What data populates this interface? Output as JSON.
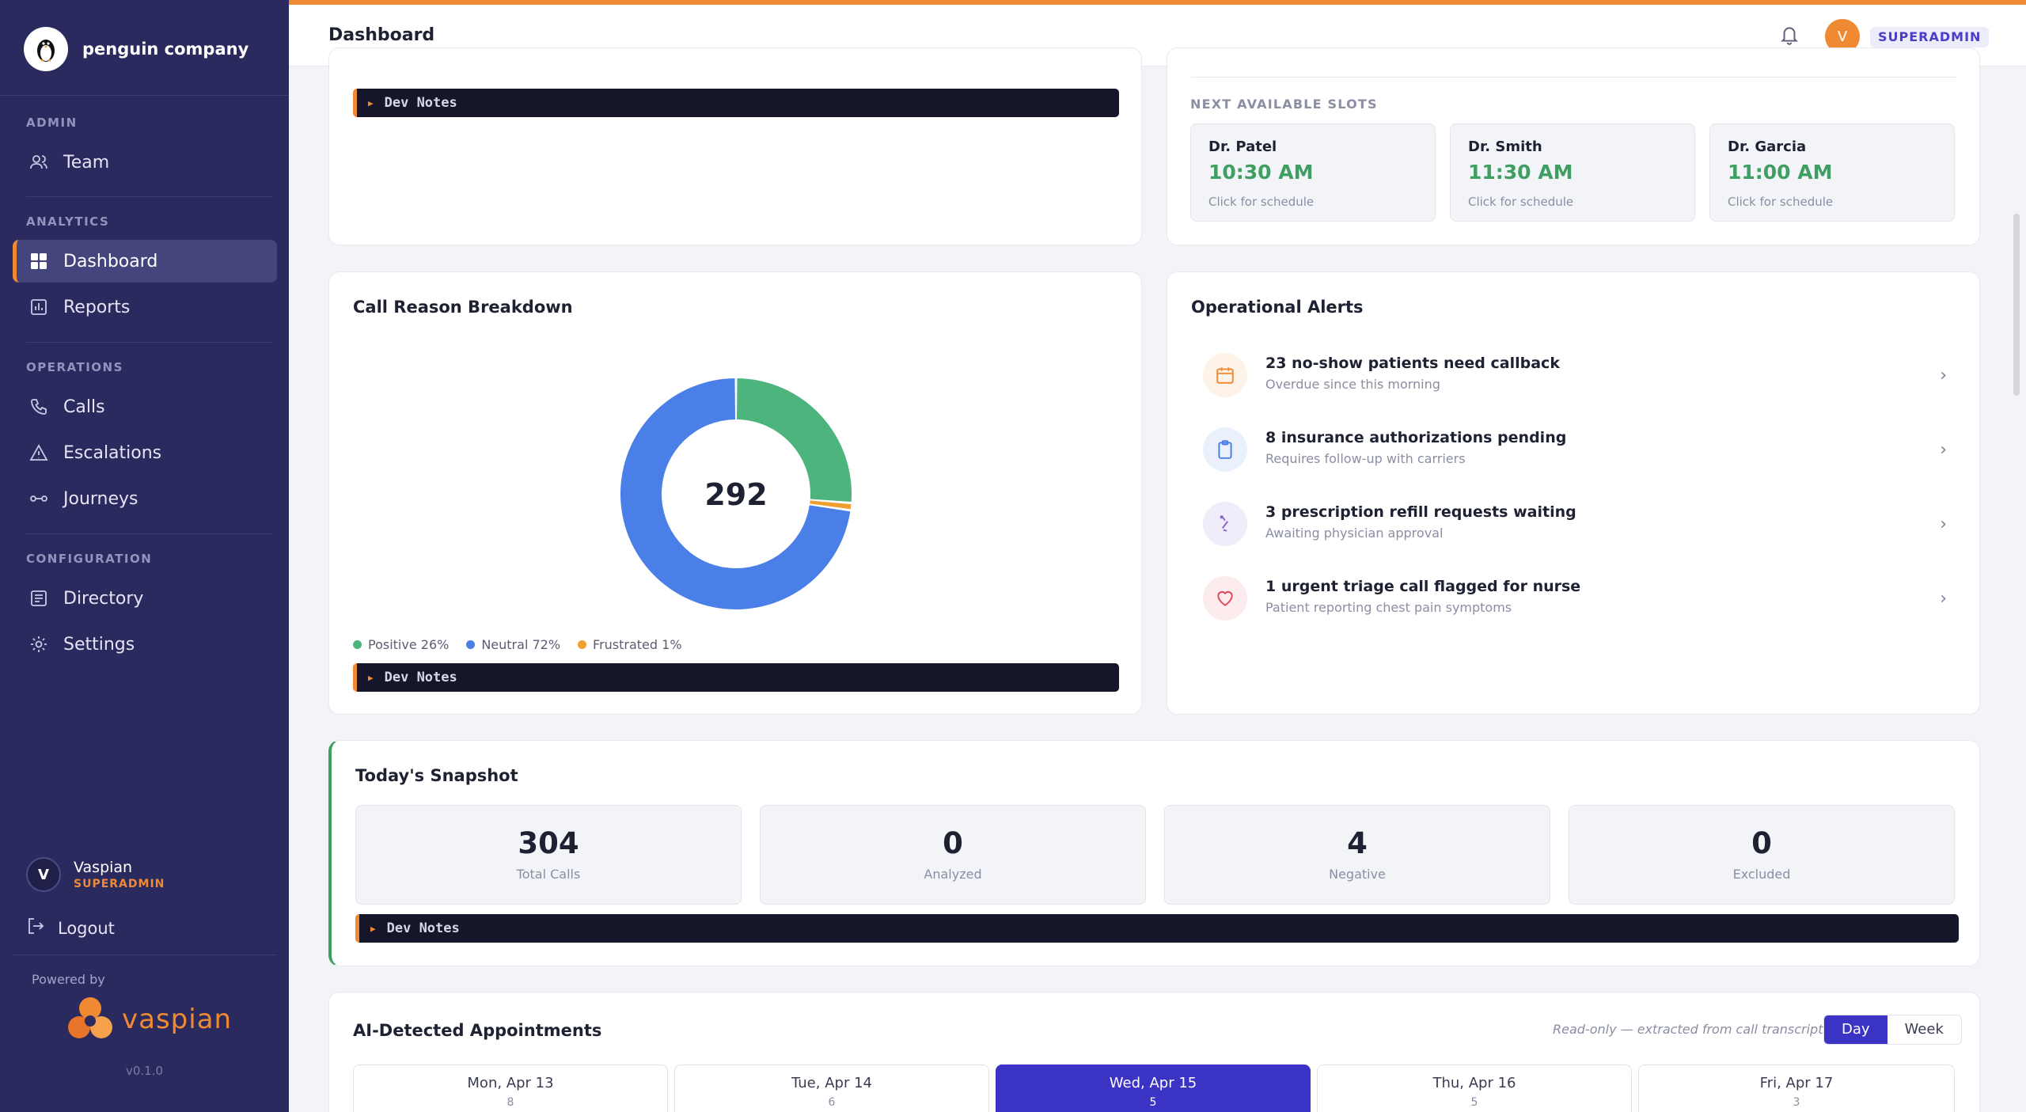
{
  "sidebar": {
    "company": "penguin company",
    "sections": {
      "admin": "ADMIN",
      "analytics": "ANALYTICS",
      "operations": "OPERATIONS",
      "configuration": "CONFIGURATION"
    },
    "items": {
      "team": "Team",
      "dashboard": "Dashboard",
      "reports": "Reports",
      "calls": "Calls",
      "escalations": "Escalations",
      "journeys": "Journeys",
      "directory": "Directory",
      "settings": "Settings"
    },
    "active_item": "dashboard",
    "user": {
      "initial": "V",
      "name": "Vaspian",
      "role": "SUPERADMIN"
    },
    "logout": "Logout",
    "powered_by": "Powered by",
    "vendor": "vaspian",
    "version": "v0.1.0"
  },
  "header": {
    "title": "Dashboard",
    "avatar_initial": "V",
    "role_badge": "SUPERADMIN"
  },
  "dev_notes_label": "Dev Notes",
  "slots": {
    "label": "NEXT AVAILABLE SLOTS",
    "items": [
      {
        "doctor": "Dr. Patel",
        "time": "10:30 AM",
        "hint": "Click for schedule"
      },
      {
        "doctor": "Dr. Smith",
        "time": "11:30 AM",
        "hint": "Click for schedule"
      },
      {
        "doctor": "Dr. Garcia",
        "time": "11:00 AM",
        "hint": "Click for schedule"
      }
    ]
  },
  "call_reasons": {
    "title": "Call Reason Breakdown",
    "center_value": "292",
    "legend": [
      {
        "label": "Positive 26%",
        "color": "#4cb47c"
      },
      {
        "label": "Neutral 72%",
        "color": "#4a7fe8"
      },
      {
        "label": "Frustrated 1%",
        "color": "#f0a030"
      }
    ]
  },
  "chart_data": {
    "type": "pie",
    "donut": true,
    "center_label": "292",
    "categories": [
      "Positive",
      "Neutral",
      "Frustrated"
    ],
    "values": [
      26,
      72,
      1
    ],
    "colors": [
      "#4cb47c",
      "#4a7fe8",
      "#f0a030"
    ]
  },
  "alerts": {
    "title": "Operational Alerts",
    "items": [
      {
        "title": "23 no-show patients need callback",
        "sub": "Overdue since this morning",
        "icon": "calendar-icon",
        "color": "#f08a32",
        "bg": "#fef3e8"
      },
      {
        "title": "8 insurance authorizations pending",
        "sub": "Requires follow-up with carriers",
        "icon": "clipboard-icon",
        "color": "#4a7fe8",
        "bg": "#eaf1fd"
      },
      {
        "title": "3 prescription refill requests waiting",
        "sub": "Awaiting physician approval",
        "icon": "pill-icon",
        "color": "#8a63d2",
        "bg": "#f1ecfa"
      },
      {
        "title": "1 urgent triage call flagged for nurse",
        "sub": "Patient reporting chest pain symptoms",
        "icon": "heart-icon",
        "color": "#e0485a",
        "bg": "#fdecee"
      }
    ]
  },
  "snapshot": {
    "title": "Today's Snapshot",
    "stats": [
      {
        "value": "304",
        "label": "Total Calls"
      },
      {
        "value": "0",
        "label": "Analyzed"
      },
      {
        "value": "4",
        "label": "Negative"
      },
      {
        "value": "0",
        "label": "Excluded"
      }
    ]
  },
  "appointments": {
    "title": "AI-Detected Appointments",
    "note": "Read-only — extracted from call transcripts",
    "toggle": {
      "day": "Day",
      "week": "Week",
      "selected": "day"
    },
    "days": [
      {
        "label": "Mon, Apr 13",
        "count": "8"
      },
      {
        "label": "Tue, Apr 14",
        "count": "6"
      },
      {
        "label": "Wed, Apr 15",
        "count": "5",
        "selected": true
      },
      {
        "label": "Thu, Apr 16",
        "count": "5"
      },
      {
        "label": "Fri, Apr 17",
        "count": "3"
      }
    ]
  }
}
